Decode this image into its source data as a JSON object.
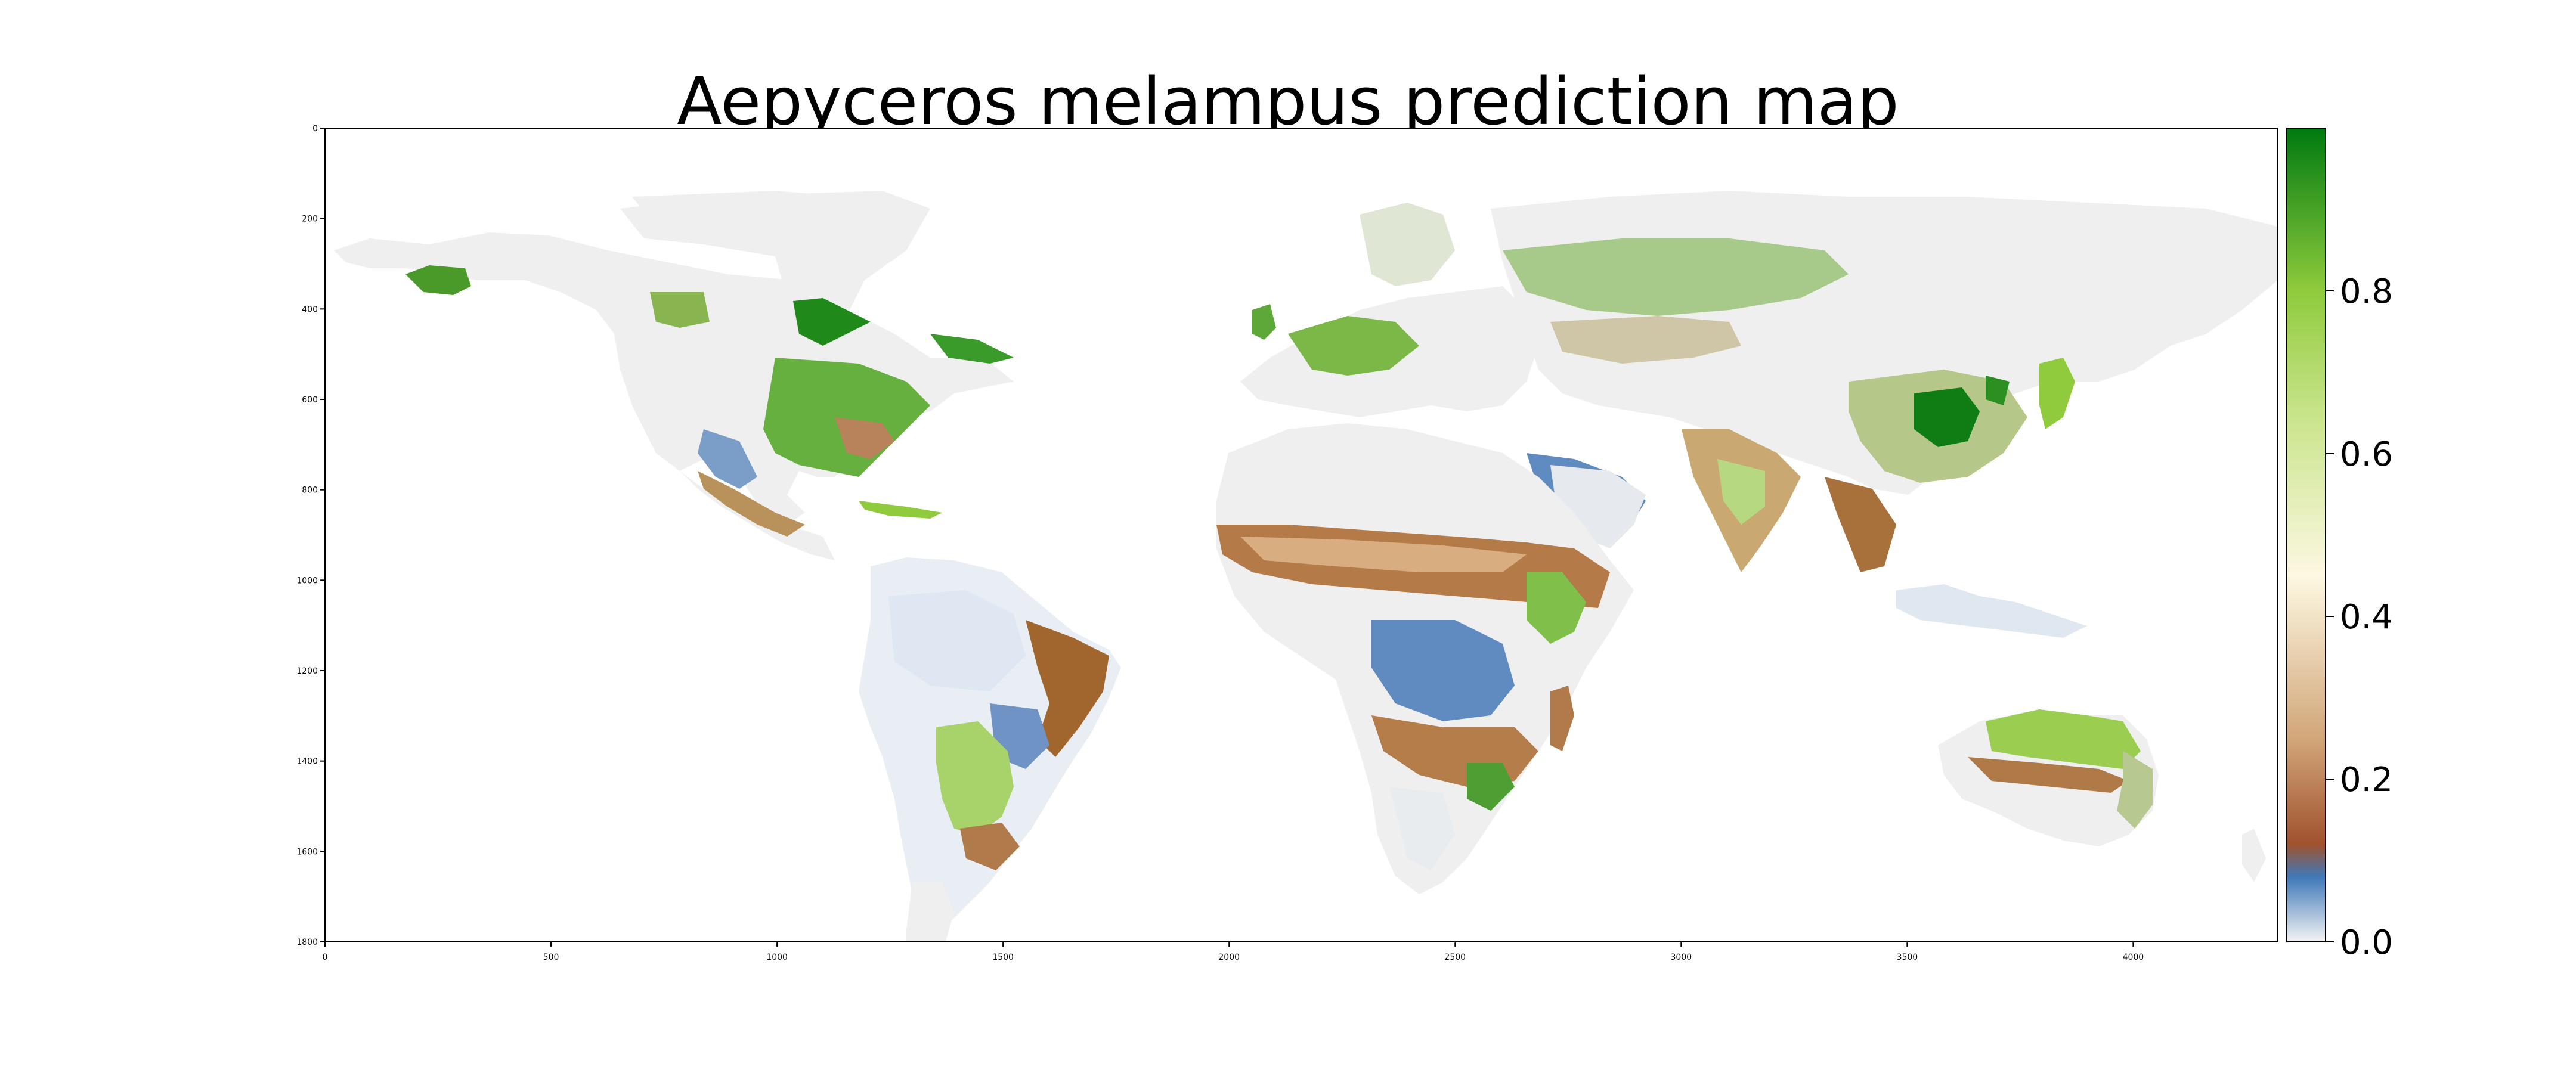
{
  "title": "Aepyceros melampus prediction map",
  "axes": {
    "x_ticks": [
      0,
      500,
      1000,
      1500,
      2000,
      2500,
      3000,
      3500,
      4000
    ],
    "y_ticks": [
      0,
      200,
      400,
      600,
      800,
      1000,
      1200,
      1400,
      1600,
      1800
    ],
    "x_range": [
      0,
      4320
    ],
    "y_range": [
      0,
      1800
    ]
  },
  "colorbar": {
    "range": [
      0,
      1
    ],
    "tick_values": [
      0.0,
      0.2,
      0.4,
      0.6,
      0.8
    ],
    "tick_labels": [
      "0.0",
      "0.2",
      "0.4",
      "0.6",
      "0.8"
    ],
    "colors": [
      {
        "value": 0.0,
        "color": "#f4f4f4"
      },
      {
        "value": 0.08,
        "color": "#3f78b8"
      },
      {
        "value": 0.12,
        "color": "#a0522d"
      },
      {
        "value": 0.25,
        "color": "#d2a679"
      },
      {
        "value": 0.45,
        "color": "#fdf8e2"
      },
      {
        "value": 0.65,
        "color": "#c8e48a"
      },
      {
        "value": 0.8,
        "color": "#8fcb3c"
      },
      {
        "value": 1.0,
        "color": "#007a10"
      }
    ]
  }
}
